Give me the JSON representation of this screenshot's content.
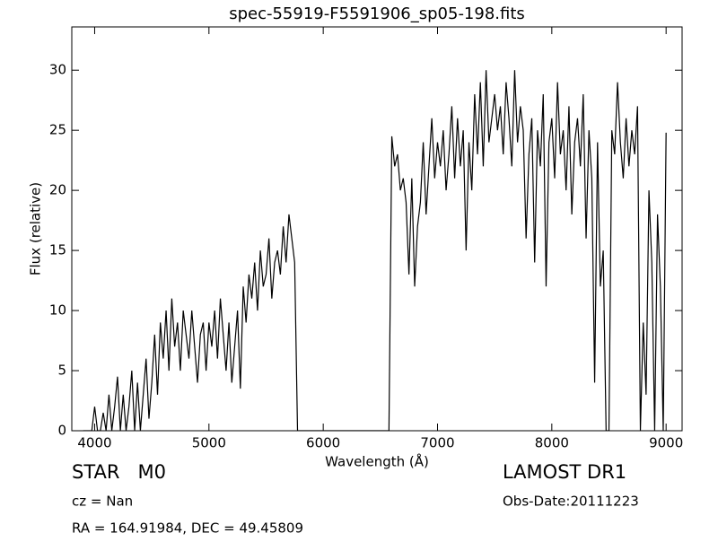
{
  "chart_data": {
    "type": "line",
    "title": "spec-55919-F5591906_sp05-198.fits",
    "x_label": "Wavelength (Å)",
    "y_label": "Flux (relative)",
    "annotations": [
      "STAR   M0",
      "LAMOST DR1",
      "cz = Nan",
      "Obs-Date:20111223",
      "RA = 164.91984, DEC = 49.45809"
    ],
    "color": "#000000",
    "xlim": [
      3800,
      9140
    ],
    "ylim": [
      0,
      33.6
    ],
    "xticks": [
      4000,
      5000,
      6000,
      7000,
      8000,
      9000
    ],
    "yticks": [
      0,
      5,
      10,
      15,
      20,
      25,
      30
    ],
    "grid": false,
    "x": [
      3900,
      3925,
      3950,
      3975,
      4000,
      4025,
      4050,
      4075,
      4100,
      4125,
      4150,
      4175,
      4200,
      4225,
      4250,
      4275,
      4300,
      4325,
      4350,
      4375,
      4400,
      4425,
      4450,
      4475,
      4500,
      4525,
      4550,
      4575,
      4600,
      4625,
      4650,
      4675,
      4700,
      4725,
      4750,
      4775,
      4800,
      4825,
      4850,
      4875,
      4900,
      4925,
      4950,
      4975,
      5000,
      5025,
      5050,
      5075,
      5100,
      5125,
      5150,
      5175,
      5200,
      5225,
      5250,
      5275,
      5300,
      5325,
      5350,
      5375,
      5400,
      5425,
      5450,
      5475,
      5500,
      5525,
      5550,
      5575,
      5600,
      5625,
      5650,
      5675,
      5700,
      5725,
      5750,
      5775,
      5800,
      5825,
      5850,
      5875,
      5900,
      5925,
      5950,
      5975,
      6000,
      6025,
      6050,
      6075,
      6100,
      6125,
      6150,
      6175,
      6200,
      6225,
      6250,
      6275,
      6300,
      6325,
      6350,
      6375,
      6400,
      6425,
      6450,
      6475,
      6500,
      6525,
      6550,
      6575,
      6600,
      6625,
      6650,
      6675,
      6700,
      6725,
      6750,
      6775,
      6800,
      6825,
      6850,
      6875,
      6900,
      6925,
      6950,
      6975,
      7000,
      7025,
      7050,
      7075,
      7100,
      7125,
      7150,
      7175,
      7200,
      7225,
      7250,
      7275,
      7300,
      7325,
      7350,
      7375,
      7400,
      7425,
      7450,
      7475,
      7500,
      7525,
      7550,
      7575,
      7600,
      7625,
      7650,
      7675,
      7700,
      7725,
      7750,
      7775,
      7800,
      7825,
      7850,
      7875,
      7900,
      7925,
      7950,
      7975,
      8000,
      8025,
      8050,
      8075,
      8100,
      8125,
      8150,
      8175,
      8200,
      8225,
      8250,
      8275,
      8300,
      8325,
      8350,
      8375,
      8400,
      8425,
      8450,
      8475,
      8500,
      8525,
      8550,
      8575,
      8600,
      8625,
      8650,
      8675,
      8700,
      8725,
      8750,
      8775,
      8800,
      8825,
      8850,
      8875,
      8900,
      8925,
      8950,
      8975,
      9000
    ],
    "values": [
      0,
      0,
      0,
      0,
      2,
      0,
      0,
      1.5,
      0,
      3,
      0,
      2,
      4.5,
      0,
      3,
      0,
      2,
      5,
      0,
      4,
      0,
      3,
      6,
      1,
      4,
      8,
      3,
      9,
      6,
      10,
      5,
      11,
      7,
      9,
      5,
      10,
      8,
      6,
      10,
      7,
      4,
      8,
      9,
      5,
      9,
      7,
      10,
      6,
      11,
      8,
      5,
      9,
      4,
      7,
      10,
      3.5,
      12,
      9,
      13,
      11,
      14,
      10,
      15,
      12,
      13,
      16,
      11,
      14,
      15,
      13,
      17,
      14,
      18,
      16,
      14,
      0,
      0,
      0,
      0,
      0,
      0,
      0,
      0,
      0,
      0,
      0,
      0,
      0,
      0,
      0,
      0,
      0,
      0,
      0,
      0,
      0,
      0,
      0,
      0,
      0,
      0,
      0,
      0,
      0,
      0,
      0,
      0,
      0,
      24.5,
      22,
      23,
      20,
      21,
      19,
      13,
      21,
      12,
      17,
      19,
      24,
      18,
      22,
      26,
      21,
      24,
      22,
      25,
      20,
      23,
      27,
      21,
      26,
      22,
      25,
      15,
      24,
      20,
      28,
      23,
      29,
      22,
      30,
      24,
      26,
      28,
      25,
      27,
      23,
      29,
      26,
      22,
      30,
      24,
      27,
      25,
      16,
      23,
      26,
      14,
      25,
      22,
      28,
      12,
      24,
      26,
      21,
      29,
      23,
      25,
      20,
      27,
      18,
      24,
      26,
      22,
      28,
      16,
      25,
      21,
      4,
      24,
      12,
      15,
      0,
      0,
      25,
      23,
      29,
      24,
      21,
      26,
      22,
      25,
      23,
      27,
      0,
      9,
      3,
      20,
      14,
      0,
      18,
      12,
      0,
      24.8
    ]
  }
}
